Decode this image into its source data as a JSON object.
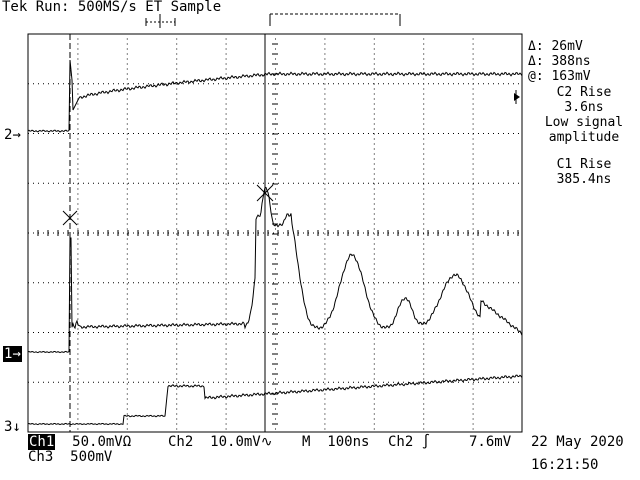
{
  "header": {
    "title": "Tek Run: 500MS/s ET Sample"
  },
  "readouts": {
    "delta_v": "Δ: 26mV",
    "delta_t": "Δ: 388ns",
    "at_v": "@: 163mV",
    "c2_rise_label": "C2 Rise",
    "c2_rise_value": "3.6ns",
    "warn_line1": "Low signal",
    "warn_line2": "amplitude",
    "c1_rise_label": "C1 Rise",
    "c1_rise_value": "385.4ns"
  },
  "markers": {
    "ch2": "2",
    "ch1": "1",
    "ch3": "3"
  },
  "footer": {
    "ch1_label": "Ch1",
    "ch1_scale": "50.0mVΩ",
    "ch3_label": "Ch3",
    "ch3_scale": "500mV",
    "ch2_label": "Ch2",
    "ch2_scale": "10.0mV",
    "ch2_coupling": "∿",
    "time_label": "M",
    "time_scale": "100ns",
    "trigger_src": "Ch2",
    "trigger_slope": "∫",
    "trigger_level": "7.6mV",
    "date": "22 May 2020",
    "time": "16:21:50"
  },
  "colors": {
    "trace": "#000000",
    "background": "#ffffff"
  }
}
